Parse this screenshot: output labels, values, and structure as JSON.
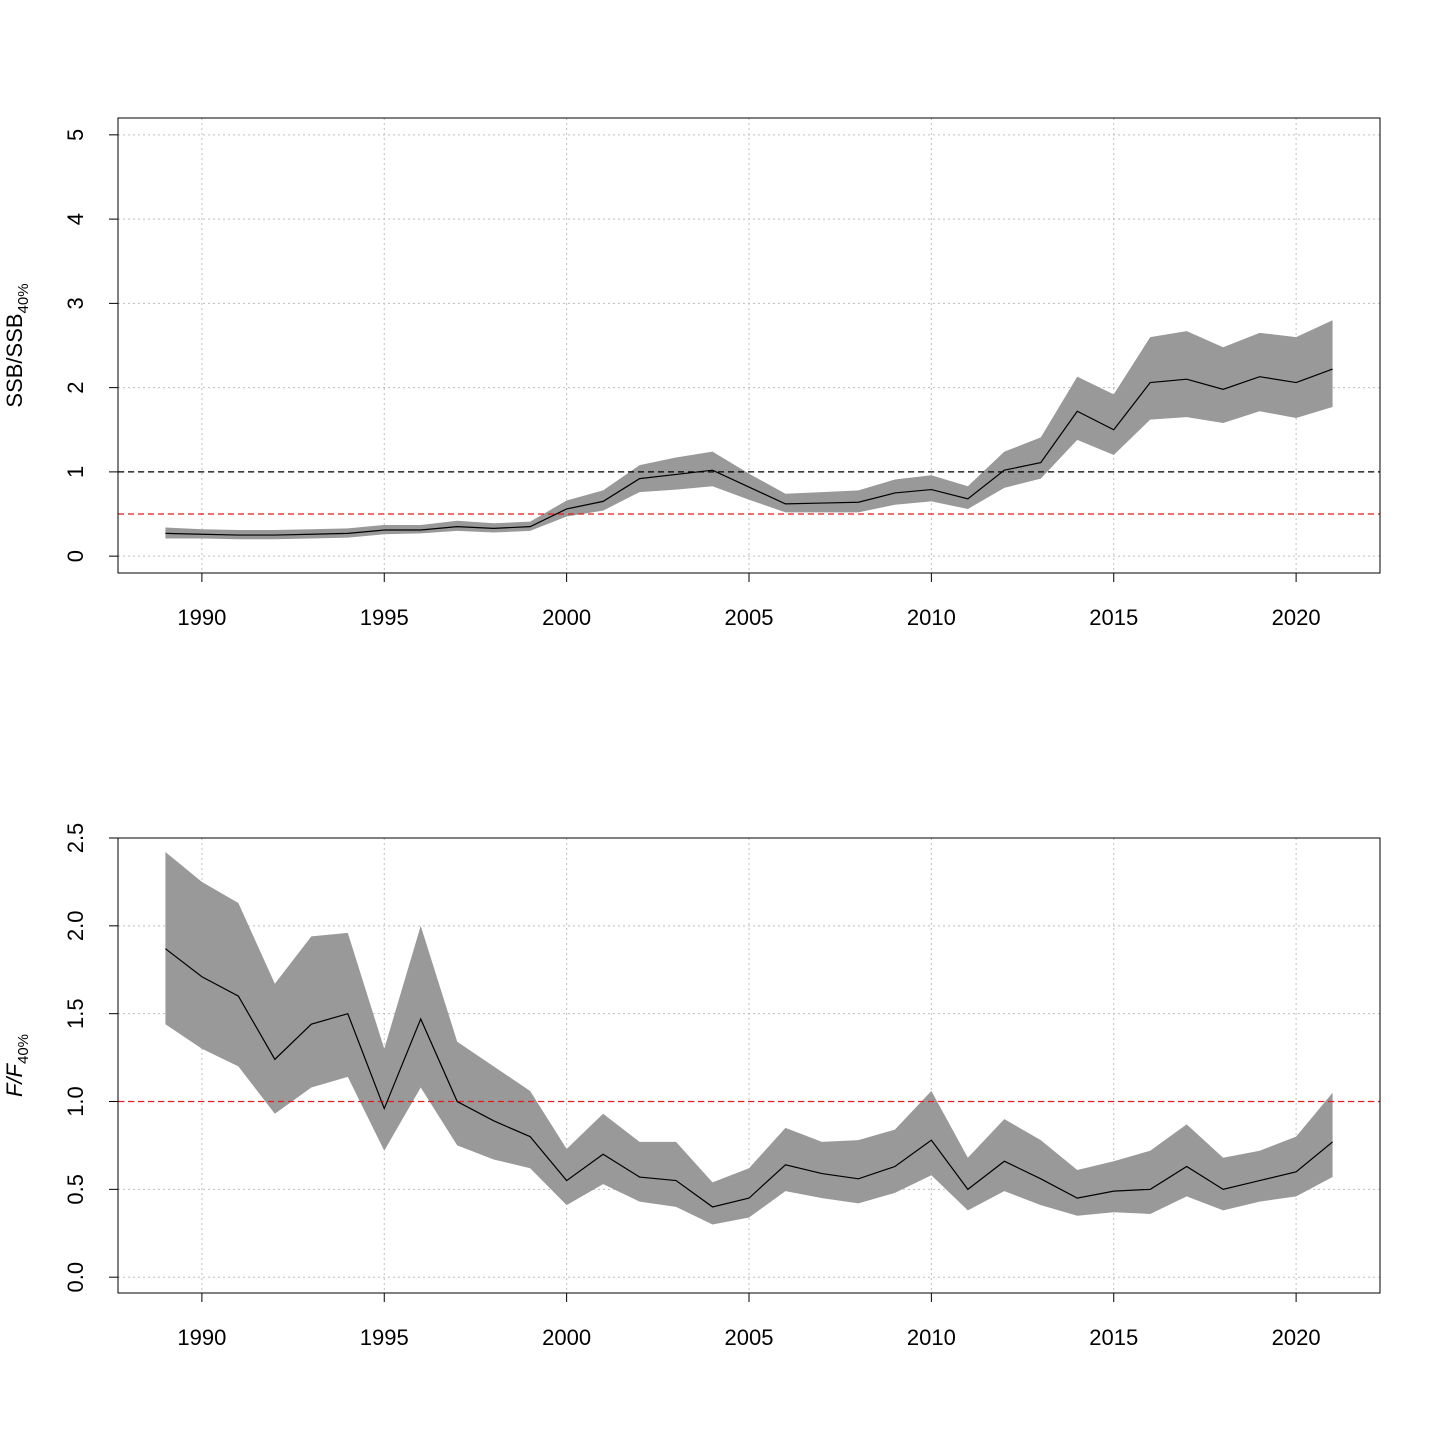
{
  "colors": {
    "band": "#999999",
    "line": "#000000",
    "grid": "#bfbfbf",
    "reference_black": "#000000",
    "reference_red": "#e41a1c"
  },
  "chart_data": [
    {
      "type": "area",
      "ylabel": "SSB/SSB",
      "ylabel_subscript": "40%",
      "ylabel_italic": false,
      "xlim": [
        1987.7,
        2022.3
      ],
      "ylim": [
        -0.2,
        5.2
      ],
      "xticks": [
        1990,
        1995,
        2000,
        2005,
        2010,
        2015,
        2020
      ],
      "yticks": [
        0,
        1,
        2,
        3,
        4,
        5
      ],
      "grid": true,
      "reference_lines": [
        {
          "y": 1.0,
          "color": "black",
          "style": "dashed"
        },
        {
          "y": 0.5,
          "color": "red",
          "style": "dashed"
        }
      ],
      "x": [
        1989,
        1990,
        1991,
        1992,
        1993,
        1994,
        1995,
        1996,
        1997,
        1998,
        1999,
        2000,
        2001,
        2002,
        2003,
        2004,
        2005,
        2006,
        2007,
        2008,
        2009,
        2010,
        2011,
        2012,
        2013,
        2014,
        2015,
        2016,
        2017,
        2018,
        2019,
        2020,
        2021
      ],
      "series": [
        {
          "values": [
            0.27,
            0.26,
            0.25,
            0.25,
            0.26,
            0.27,
            0.31,
            0.31,
            0.35,
            0.33,
            0.35,
            0.56,
            0.65,
            0.92,
            0.97,
            1.02,
            0.82,
            0.62,
            0.63,
            0.64,
            0.75,
            0.79,
            0.68,
            1.02,
            1.11,
            1.72,
            1.5,
            2.06,
            2.1,
            1.98,
            2.13,
            2.06,
            2.22
          ],
          "lower": [
            0.21,
            0.21,
            0.2,
            0.2,
            0.21,
            0.22,
            0.26,
            0.27,
            0.3,
            0.28,
            0.3,
            0.47,
            0.54,
            0.76,
            0.79,
            0.83,
            0.67,
            0.52,
            0.52,
            0.52,
            0.61,
            0.65,
            0.56,
            0.81,
            0.92,
            1.38,
            1.2,
            1.62,
            1.65,
            1.58,
            1.72,
            1.64,
            1.77
          ],
          "upper": [
            0.34,
            0.32,
            0.31,
            0.31,
            0.32,
            0.33,
            0.37,
            0.37,
            0.42,
            0.39,
            0.41,
            0.66,
            0.78,
            1.08,
            1.17,
            1.24,
            0.98,
            0.74,
            0.76,
            0.78,
            0.91,
            0.96,
            0.83,
            1.24,
            1.41,
            2.13,
            1.92,
            2.6,
            2.67,
            2.48,
            2.65,
            2.6,
            2.8
          ]
        }
      ]
    },
    {
      "type": "area",
      "ylabel": "F/F",
      "ylabel_subscript": "40%",
      "ylabel_italic": true,
      "xlim": [
        1987.7,
        2022.3
      ],
      "ylim": [
        -0.09,
        2.5
      ],
      "xticks": [
        1990,
        1995,
        2000,
        2005,
        2010,
        2015,
        2020
      ],
      "yticks": [
        "0.0",
        "0.5",
        "1.0",
        "1.5",
        "2.0",
        "2.5"
      ],
      "grid": true,
      "reference_lines": [
        {
          "y": 1.0,
          "color": "red",
          "style": "dashed"
        }
      ],
      "x": [
        1989,
        1990,
        1991,
        1992,
        1993,
        1994,
        1995,
        1996,
        1997,
        1998,
        1999,
        2000,
        2001,
        2002,
        2003,
        2004,
        2005,
        2006,
        2007,
        2008,
        2009,
        2010,
        2011,
        2012,
        2013,
        2014,
        2015,
        2016,
        2017,
        2018,
        2019,
        2020,
        2021
      ],
      "series": [
        {
          "values": [
            1.87,
            1.71,
            1.6,
            1.24,
            1.44,
            1.5,
            0.96,
            1.47,
            1.0,
            0.89,
            0.8,
            0.55,
            0.7,
            0.57,
            0.55,
            0.4,
            0.45,
            0.64,
            0.59,
            0.56,
            0.63,
            0.78,
            0.5,
            0.66,
            0.56,
            0.45,
            0.49,
            0.5,
            0.63,
            0.5,
            0.55,
            0.6,
            0.77
          ],
          "lower": [
            1.44,
            1.3,
            1.2,
            0.93,
            1.08,
            1.14,
            0.72,
            1.08,
            0.75,
            0.67,
            0.62,
            0.41,
            0.53,
            0.43,
            0.4,
            0.3,
            0.34,
            0.49,
            0.45,
            0.42,
            0.48,
            0.58,
            0.38,
            0.49,
            0.41,
            0.35,
            0.37,
            0.36,
            0.46,
            0.38,
            0.43,
            0.46,
            0.57
          ],
          "upper": [
            2.42,
            2.25,
            2.13,
            1.67,
            1.94,
            1.96,
            1.3,
            2.0,
            1.34,
            1.2,
            1.06,
            0.73,
            0.93,
            0.77,
            0.77,
            0.54,
            0.62,
            0.85,
            0.77,
            0.78,
            0.84,
            1.06,
            0.68,
            0.9,
            0.78,
            0.61,
            0.66,
            0.72,
            0.87,
            0.68,
            0.72,
            0.8,
            1.05
          ]
        }
      ]
    }
  ]
}
